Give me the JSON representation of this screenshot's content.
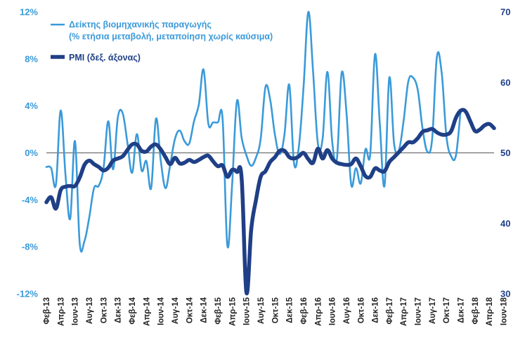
{
  "colors": {
    "ip": "#3a9ad9",
    "pmi": "#1f3f86",
    "zero_line": "#555555"
  },
  "legend": {
    "ip_line1": "Δείκτης βιομηχανικής παραγωγής",
    "ip_line2": "(% ετήσια μεταβολή, μεταποίηση χωρίς καύσιμα)",
    "pmi": "PMI (δεξ. άξονας)"
  },
  "chart_data": {
    "type": "line",
    "title": "",
    "xlabel": "",
    "ylabel_left": "",
    "ylabel_right": "",
    "ylim_left": [
      -12,
      12
    ],
    "ylim_right": [
      30,
      70
    ],
    "left_ticks": [
      "-12%",
      "-8%",
      "-4%",
      "0%",
      "4%",
      "8%",
      "12%"
    ],
    "left_tick_values": [
      -12,
      -8,
      -4,
      0,
      4,
      8,
      12
    ],
    "right_ticks": [
      "30",
      "40",
      "50",
      "60",
      "70"
    ],
    "right_tick_values": [
      30,
      40,
      50,
      60,
      70
    ],
    "x_labels": [
      "Φεβ-13",
      "Απρ-13",
      "Ιουν-13",
      "Αυγ-13",
      "Οκτ-13",
      "Δεκ-13",
      "Φεβ-14",
      "Απρ-14",
      "Ιουν-14",
      "Αυγ-14",
      "Οκτ-14",
      "Δεκ-14",
      "Φεβ-15",
      "Απρ-15",
      "Ιουν-15",
      "Αυγ-15",
      "Οκτ-15",
      "Δεκ-15",
      "Φεβ-16",
      "Απρ-16",
      "Ιουν-16",
      "Αυγ-16",
      "Οκτ-16",
      "Δεκ-16",
      "Φεβ-17",
      "Απρ-17",
      "Ιουν-17",
      "Αυγ-17",
      "Οκτ-17",
      "Δεκ-17",
      "Φεβ-18",
      "Απρ-18",
      "Ιουν-18"
    ],
    "grid": false,
    "legend_position": "top-left",
    "series": [
      {
        "name": "Δείκτης βιομηχανικής παραγωγής (% ετήσια μεταβολή, μεταποίηση χωρίς καύσιμα)",
        "axis": "left",
        "values": [
          -1.2,
          -1.3,
          -2.7,
          3.6,
          -1.8,
          -5.6,
          1.0,
          -7.7,
          -7.5,
          -5.5,
          -3.0,
          -2.8,
          -1.3,
          2.7,
          -1.4,
          3.0,
          3.4,
          0.9,
          -1.7,
          1.6,
          -1.5,
          -0.7,
          -3.0,
          2.9,
          -0.6,
          -3.0,
          -1.0,
          1.2,
          1.9,
          1.0,
          0.8,
          2.7,
          4.1,
          7.1,
          2.5,
          2.6,
          2.6,
          2.9,
          -7.9,
          -2.7,
          4.4,
          1.3,
          -0.2,
          -1.1,
          -0.4,
          1.2,
          5.6,
          4.5,
          1.5,
          -0.1,
          1.6,
          5.8,
          -0.9,
          0.5,
          5.6,
          12.0,
          6.9,
          0.8,
          1.2,
          6.9,
          1.0,
          -0.5,
          6.8,
          3.5,
          -2.7,
          -1.3,
          -2.6,
          0.3,
          -0.1,
          8.4,
          2.5,
          -2.8,
          6.4,
          0.8,
          0.2,
          2.7,
          6.1,
          6.4,
          5.3,
          2.0,
          0.1,
          1.2,
          8.2,
          6.8,
          1.4,
          -0.3,
          -0.2,
          3.7,
          null,
          null,
          null,
          null,
          null,
          null,
          null
        ]
      },
      {
        "name": "PMI (δεξ. άξονας)",
        "axis": "right",
        "values": [
          43.0,
          43.7,
          42.1,
          44.7,
          45.2,
          45.3,
          45.3,
          46.5,
          48.3,
          48.9,
          48.4,
          48.0,
          47.5,
          47.9,
          48.9,
          49.2,
          49.5,
          50.4,
          51.2,
          51.2,
          50.3,
          50.2,
          50.9,
          51.2,
          50.5,
          49.4,
          48.4,
          49.3,
          48.5,
          48.6,
          49.0,
          48.7,
          49.0,
          49.4,
          49.6,
          48.8,
          48.1,
          48.2,
          46.6,
          47.6,
          47.3,
          46.4,
          30.2,
          39.1,
          43.3,
          46.6,
          47.4,
          48.7,
          49.4,
          50.3,
          50.3,
          49.4,
          49.2,
          49.5,
          50.0,
          49.1,
          48.6,
          50.6,
          49.2,
          50.4,
          49.2,
          48.6,
          48.4,
          48.3,
          48.4,
          49.2,
          48.1,
          46.7,
          46.6,
          47.8,
          47.5,
          47.4,
          48.7,
          49.4,
          50.1,
          50.8,
          51.5,
          51.5,
          52.1,
          53.0,
          53.2,
          53.4,
          52.9,
          52.6,
          52.6,
          53.1,
          55.0,
          56.0,
          55.9,
          54.5,
          53.1,
          53.3,
          53.9,
          54.1,
          53.5
        ]
      }
    ]
  }
}
